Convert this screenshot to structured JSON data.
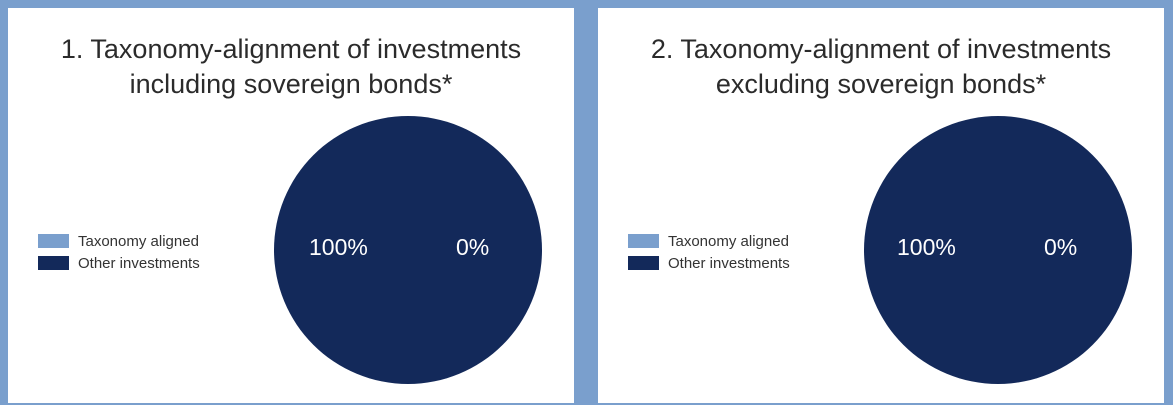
{
  "colors": {
    "taxonomy_aligned": "#7a9fcd",
    "other_investments": "#13295a",
    "background": "#7a9fcd",
    "panel": "#ffffff"
  },
  "chart_data": [
    {
      "type": "pie",
      "title_line1": "1. Taxonomy-alignment of investments",
      "title_line2": "including sovereign bonds*",
      "legend": [
        "Taxonomy aligned",
        "Other investments"
      ],
      "legend_placement": "left",
      "slices": [
        {
          "name": "Taxonomy aligned",
          "value": 0,
          "label": "0%",
          "color": "#7a9fcd"
        },
        {
          "name": "Other investments",
          "value": 100,
          "label": "100%",
          "color": "#13295a"
        }
      ]
    },
    {
      "type": "pie",
      "title_line1": "2. Taxonomy-alignment of investments",
      "title_line2": "excluding sovereign bonds*",
      "legend": [
        "Taxonomy aligned",
        "Other investments"
      ],
      "legend_placement": "left",
      "slices": [
        {
          "name": "Taxonomy aligned",
          "value": 0,
          "label": "0%",
          "color": "#7a9fcd"
        },
        {
          "name": "Other investments",
          "value": 100,
          "label": "100%",
          "color": "#13295a"
        }
      ]
    }
  ]
}
